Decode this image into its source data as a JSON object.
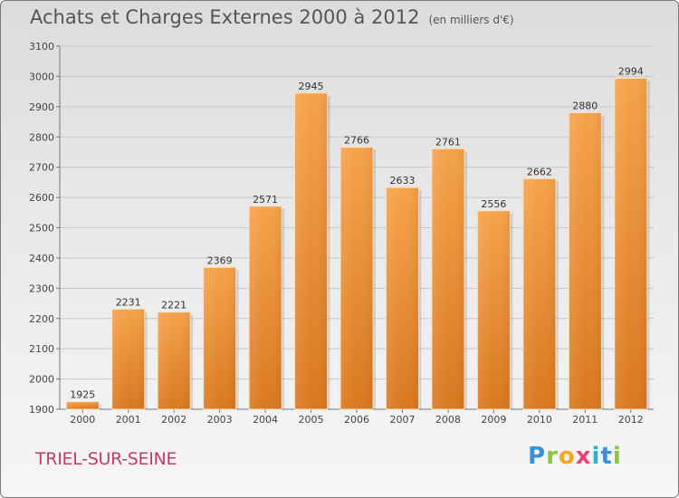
{
  "header": {
    "title": "Achats et Charges Externes 2000 à 2012",
    "subtitle": "(en milliers d'€)"
  },
  "footer": {
    "commune": "TRIEL-SUR-SEINE",
    "logo": "Proxiti"
  },
  "colors": {
    "bar_top": "#f6a24a",
    "bar_bottom": "#d9781f",
    "commune_text": "#c53a6e"
  },
  "chart_data": {
    "type": "bar",
    "title": "Achats et Charges Externes 2000 à 2012",
    "subtitle": "(en milliers d'€)",
    "categories": [
      "2000",
      "2001",
      "2002",
      "2003",
      "2004",
      "2005",
      "2006",
      "2007",
      "2008",
      "2009",
      "2010",
      "2011",
      "2012"
    ],
    "values": [
      1925,
      2231,
      2221,
      2369,
      2571,
      2945,
      2766,
      2633,
      2761,
      2556,
      2662,
      2880,
      2994
    ],
    "ylim": [
      1900,
      3100
    ],
    "yticks": [
      1900,
      2000,
      2100,
      2200,
      2300,
      2400,
      2500,
      2600,
      2700,
      2800,
      2900,
      3000,
      3100
    ],
    "grid": true,
    "data_labels": true
  }
}
